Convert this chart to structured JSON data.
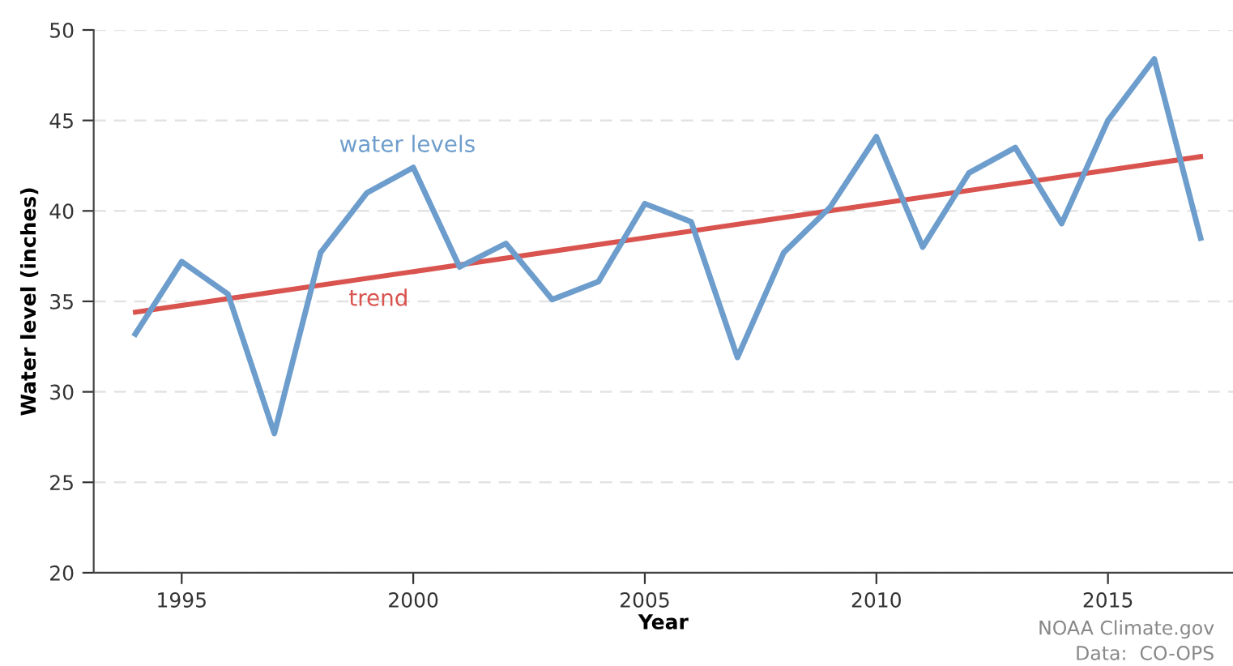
{
  "chart_data": {
    "type": "line",
    "xlabel": "Year",
    "ylabel": "Water level (inches)",
    "x": [
      1994,
      1995,
      1996,
      1997,
      1998,
      1999,
      2000,
      2001,
      2002,
      2003,
      2004,
      2005,
      2006,
      2007,
      2008,
      2009,
      2010,
      2011,
      2012,
      2013,
      2014,
      2015,
      2016,
      2017
    ],
    "series": [
      {
        "name": "water levels",
        "color": "#6d9dcc",
        "values": [
          33.2,
          37.2,
          35.4,
          27.7,
          37.7,
          41.0,
          42.4,
          36.9,
          38.2,
          35.1,
          36.1,
          40.4,
          39.4,
          31.9,
          37.7,
          40.2,
          44.1,
          38.0,
          42.1,
          43.5,
          39.3,
          45.0,
          48.4,
          38.5
        ]
      },
      {
        "name": "trend",
        "color": "#d9534f",
        "type": "line",
        "x": [
          1994,
          2017
        ],
        "values": [
          34.4,
          43.0
        ]
      }
    ],
    "xlim": [
      1993.1,
      2017.7
    ],
    "ylim": [
      20,
      50
    ],
    "xticks": [
      1995,
      2000,
      2005,
      2010,
      2015
    ],
    "yticks": [
      20,
      25,
      30,
      35,
      40,
      45,
      50
    ],
    "grid": "y",
    "legend": false,
    "marker": "none",
    "line_style": "solid",
    "annotations": [
      "NOAA Climate.gov",
      "Data:  CO-OPS"
    ]
  }
}
